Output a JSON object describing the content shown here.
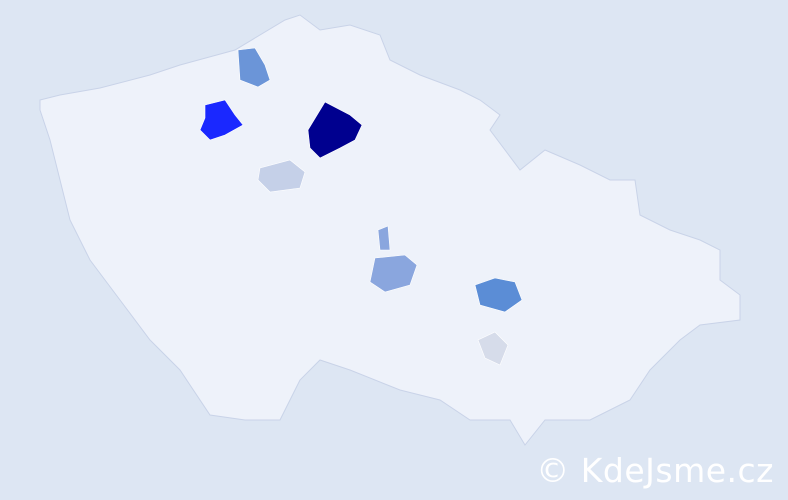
{
  "map": {
    "background_color": "#dde6f3",
    "country_fill": "#eef2fa",
    "border_color": "#c9d3e8",
    "highlighted_districts": [
      {
        "color": "#00008f"
      },
      {
        "color": "#1a28ff"
      },
      {
        "color": "#6b95d8"
      },
      {
        "color": "#c5d0e8"
      },
      {
        "color": "#8aa6de"
      },
      {
        "color": "#8aa6de"
      },
      {
        "color": "#5b8dd6"
      },
      {
        "color": "#d6dcea"
      }
    ]
  },
  "watermark": {
    "text": "© KdeJsme.cz"
  }
}
